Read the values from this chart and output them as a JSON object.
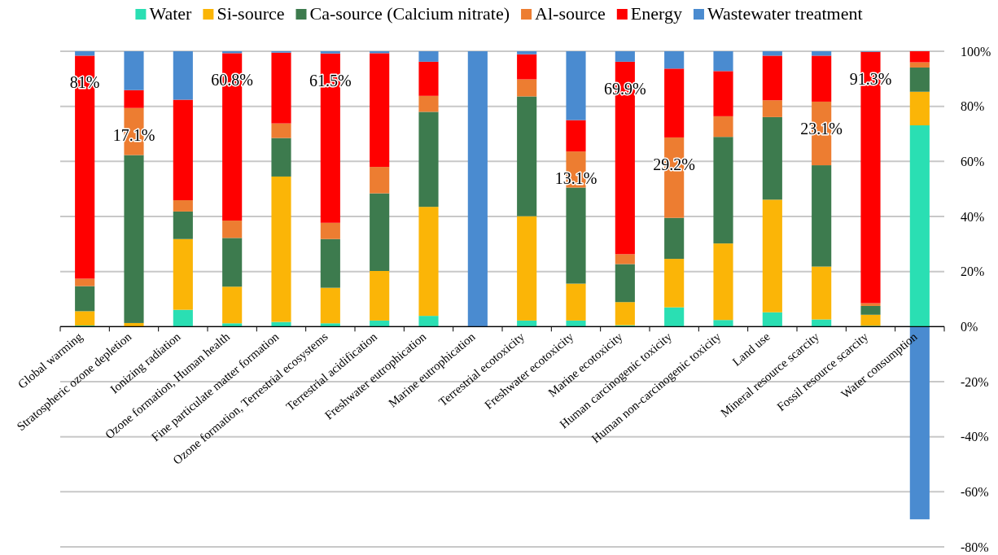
{
  "chart_data": {
    "type": "bar",
    "stacked": true,
    "categories": [
      "Global warming",
      "Stratospheric ozone depletion",
      "Ionizing radiation",
      "Ozone formation, Human health",
      "Fine particulate matter formation",
      "Ozone formation, Terrestrial ecosystems",
      "Terrestrial acidification",
      "Freshwater eutrophication",
      "Marine eutrophication",
      "Terrestrial ecotoxicity",
      "Freshwater ecotoxicity",
      "Marine ecotoxicity",
      "Human carcinogenic toxicity",
      "Human non-carcinogenic toxicity",
      "Land use",
      "Mineral resource scarcity",
      "Fossil resource scarcity",
      "Water consumption"
    ],
    "series": [
      {
        "name": "Water",
        "color": "#2adfb3",
        "values": [
          0.4,
          0,
          6.1,
          1.2,
          1.7,
          1.2,
          2.2,
          3.9,
          0,
          2.2,
          2.2,
          0.5,
          7.0,
          2.4,
          5.2,
          2.6,
          0.3,
          73.1
        ]
      },
      {
        "name": "Si-source",
        "color": "#fbb507",
        "values": [
          5.2,
          1.3,
          25.7,
          13.3,
          52.8,
          12.9,
          18.0,
          39.6,
          0,
          37.9,
          13.4,
          8.4,
          17.6,
          27.8,
          40.9,
          19.2,
          4.0,
          12.2
        ]
      },
      {
        "name": "Ca-source (Calcium nitrate)",
        "color": "#3d7b4e",
        "values": [
          9.1,
          61.0,
          10.0,
          17.7,
          14.0,
          17.7,
          28.2,
          34.5,
          0,
          43.5,
          34.9,
          13.8,
          14.9,
          38.7,
          30.0,
          36.8,
          3.2,
          8.8
        ]
      },
      {
        "name": "Al-source",
        "color": "#ed7d31",
        "values": [
          2.7,
          17.1,
          4.1,
          6.3,
          5.3,
          5.9,
          9.6,
          5.8,
          0,
          6.2,
          13.1,
          3.6,
          29.2,
          7.5,
          6.1,
          23.1,
          1.0,
          1.9
        ],
        "value_labels": [
          null,
          "17.1%",
          null,
          null,
          null,
          null,
          null,
          null,
          null,
          null,
          "13.1%",
          null,
          "29.2%",
          null,
          null,
          "23.1%",
          null,
          null
        ]
      },
      {
        "name": "Energy",
        "color": "#ff0000",
        "values": [
          81.0,
          6.5,
          36.5,
          60.8,
          25.7,
          61.5,
          41.3,
          12.4,
          0,
          9.1,
          11.4,
          69.9,
          25.0,
          16.4,
          16.2,
          16.7,
          91.3,
          4.0
        ],
        "value_labels": [
          "81%",
          null,
          null,
          "60.8%",
          null,
          "61.5%",
          null,
          null,
          null,
          null,
          null,
          "69.9%",
          null,
          null,
          null,
          null,
          "91.3%",
          null
        ]
      },
      {
        "name": "Wastewater treatment",
        "color": "#4a8bd0",
        "values": [
          1.6,
          14.1,
          17.6,
          0.7,
          0.5,
          0.8,
          0.7,
          3.8,
          100,
          1.1,
          25.0,
          3.8,
          6.3,
          7.2,
          1.6,
          1.6,
          0.2,
          -70.0
        ]
      }
    ],
    "ylim": [
      -80,
      100
    ],
    "yticks": [
      {
        "value": -80,
        "label": "-80%"
      },
      {
        "value": -60,
        "label": "-60%"
      },
      {
        "value": -40,
        "label": "-40%"
      },
      {
        "value": -20,
        "label": "-20%"
      },
      {
        "value": 0,
        "label": "0%"
      },
      {
        "value": 20,
        "label": "20%"
      },
      {
        "value": 40,
        "label": "40%"
      },
      {
        "value": 60,
        "label": "60%"
      },
      {
        "value": 80,
        "label": "80%"
      },
      {
        "value": 100,
        "label": "100%"
      }
    ],
    "grid": "y",
    "legend": "top"
  }
}
